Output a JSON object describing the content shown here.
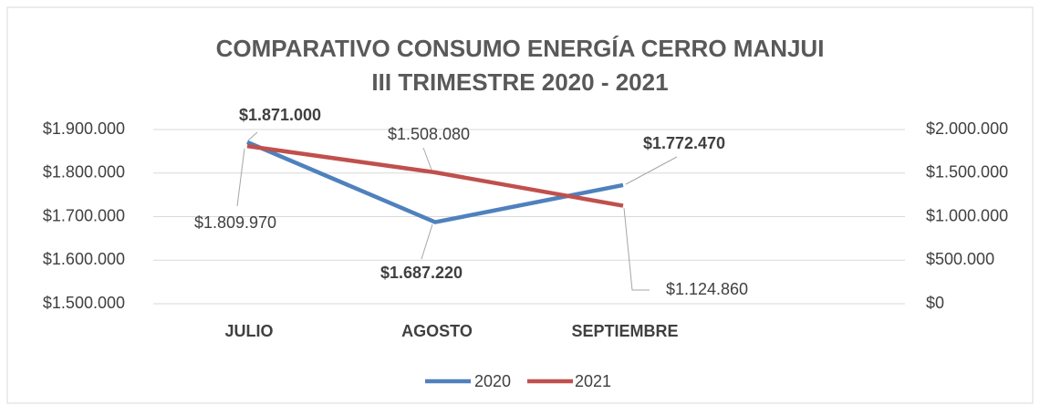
{
  "chart_data": {
    "type": "line",
    "title": "COMPARATIVO CONSUMO ENERGÍA CERRO MANJUI",
    "subtitle": "III TRIMESTRE 2020 - 2021",
    "categories": [
      "JULIO",
      "AGOSTO",
      "SEPTIEMBRE",
      null
    ],
    "series": [
      {
        "name": "2020",
        "color": "#4f81bd",
        "axis": "y",
        "values": [
          1871000,
          1687220,
          1772470,
          null
        ],
        "value_labels": [
          "$1.871.000",
          "$1.687.220",
          "$1.772.470",
          null
        ]
      },
      {
        "name": "2021",
        "color": "#c0504d",
        "axis": "y2",
        "values": [
          1809970,
          1508080,
          1124860,
          null
        ],
        "value_labels": [
          "$1.809.970",
          "$1.508.080",
          "$1.124.860",
          null
        ]
      }
    ],
    "ylim": [
      1500000,
      1900000
    ],
    "yticks": [
      {
        "value": 1500000,
        "label": "$1.500.000"
      },
      {
        "value": 1600000,
        "label": "$1.600.000"
      },
      {
        "value": 1700000,
        "label": "$1.700.000"
      },
      {
        "value": 1800000,
        "label": "$1.800.000"
      },
      {
        "value": 1900000,
        "label": "$1.900.000"
      }
    ],
    "y2lim": [
      0,
      2000000
    ],
    "y2ticks": [
      {
        "value": 0,
        "label": "$0"
      },
      {
        "value": 500000,
        "label": "$500.000"
      },
      {
        "value": 1000000,
        "label": "$1.000.000"
      },
      {
        "value": 1500000,
        "label": "$1.500.000"
      },
      {
        "value": 2000000,
        "label": "$2.000.000"
      }
    ],
    "grid": true,
    "legend": "bottom"
  }
}
